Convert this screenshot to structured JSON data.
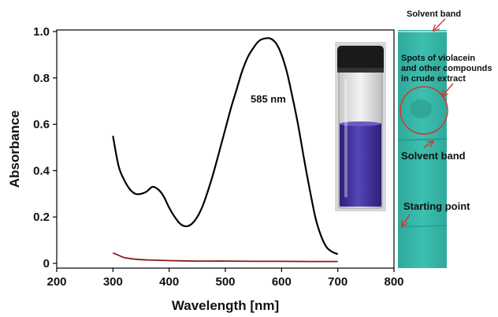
{
  "chart_data": {
    "type": "line",
    "xlabel": "Wavelength [nm]",
    "ylabel": "Absorbance",
    "xlim": [
      200,
      800
    ],
    "ylim": [
      0,
      1.0
    ],
    "x_ticks": [
      200,
      300,
      400,
      500,
      600,
      700,
      800
    ],
    "y_ticks": [
      "0",
      "0.2",
      "0.4",
      "0.6",
      "0.8",
      "1.0"
    ],
    "grid": false,
    "series": [
      {
        "color": "#000000",
        "x": [
          300,
          310,
          320,
          330,
          340,
          350,
          360,
          370,
          380,
          390,
          400,
          410,
          420,
          430,
          440,
          450,
          460,
          470,
          480,
          490,
          500,
          510,
          520,
          530,
          540,
          550,
          560,
          570,
          580,
          590,
          600,
          610,
          620,
          630,
          640,
          650,
          660,
          670,
          680,
          690,
          700
        ],
        "y": [
          0.55,
          0.42,
          0.36,
          0.32,
          0.3,
          0.3,
          0.31,
          0.33,
          0.32,
          0.29,
          0.24,
          0.2,
          0.17,
          0.16,
          0.17,
          0.2,
          0.25,
          0.32,
          0.4,
          0.49,
          0.58,
          0.67,
          0.75,
          0.83,
          0.89,
          0.93,
          0.96,
          0.97,
          0.97,
          0.95,
          0.9,
          0.82,
          0.71,
          0.59,
          0.45,
          0.32,
          0.2,
          0.12,
          0.07,
          0.05,
          0.04
        ]
      },
      {
        "color": "#8b1a1a",
        "x": [
          300,
          310,
          320,
          340,
          360,
          400,
          450,
          500,
          550,
          600,
          650,
          700
        ],
        "y": [
          0.045,
          0.035,
          0.025,
          0.018,
          0.015,
          0.012,
          0.01,
          0.01,
          0.009,
          0.009,
          0.008,
          0.008
        ]
      }
    ],
    "annotations": [
      "585 nm"
    ]
  },
  "tlc": {
    "labels": [
      "Solvent band",
      "Spots of  violacein",
      "and other compounds",
      "in crude extract",
      "Solvent band",
      "Starting point"
    ]
  },
  "colors": {
    "tlc_plate": "#36b8a8",
    "vial_liquid": "#3f2f9c",
    "vial_cap": "#1a1a1a",
    "arrow": "#d9342b"
  }
}
